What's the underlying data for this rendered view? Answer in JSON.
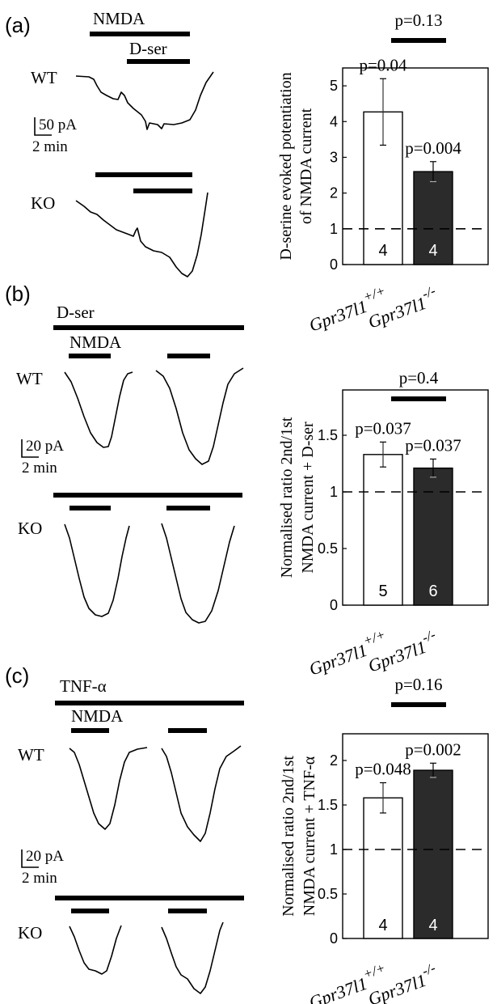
{
  "panels": [
    {
      "id": "a",
      "label": "(a)",
      "traces": {
        "wt_label": "WT",
        "ko_label": "KO",
        "outer_bar_label": "NMDA",
        "inner_bar_label": "D-ser",
        "scale_y": "50 pA",
        "scale_x": "2 min"
      }
    },
    {
      "id": "b",
      "label": "(b)",
      "traces": {
        "wt_label": "WT",
        "ko_label": "KO",
        "outer_bar_label": "D-ser",
        "inner_bar_label": "NMDA",
        "scale_y": "20 pA",
        "scale_x": "2 min"
      }
    },
    {
      "id": "c",
      "label": "(c)",
      "traces": {
        "wt_label": "WT",
        "ko_label": "KO",
        "outer_bar_label": "TNF-α",
        "inner_bar_label": "NMDA",
        "scale_y": "20 pA",
        "scale_x": "2 min"
      }
    }
  ],
  "chart_data": [
    {
      "type": "bar",
      "panel": "a",
      "ylabel_lines": [
        "D-serine evoked potentiation",
        "of NMDA current"
      ],
      "categories": [
        "Gpr37l1+/+",
        "Gpr37l1-/-"
      ],
      "category_base": [
        "Gpr37l1",
        "Gpr37l1"
      ],
      "category_sup": [
        "+/+",
        "-/-"
      ],
      "values": [
        4.27,
        2.6
      ],
      "errors": [
        0.93,
        0.28
      ],
      "n": [
        "4",
        "4"
      ],
      "bar_colors": [
        "#ffffff",
        "#2b2b2b"
      ],
      "n_colors": [
        "#000000",
        "#ffffff"
      ],
      "pvalues": [
        "p=0.04",
        "p=0.004"
      ],
      "comparison_p": "p=0.13",
      "reference_line": 1,
      "ylim": [
        0,
        5.5
      ],
      "yticks": [
        0,
        1,
        2,
        3,
        4,
        5
      ],
      "ytick_labels": [
        "0",
        "1",
        "2",
        "3",
        "4",
        "5"
      ]
    },
    {
      "type": "bar",
      "panel": "b",
      "ylabel_lines": [
        "Normalised ratio 2nd/1st",
        "NMDA current + D-ser"
      ],
      "categories": [
        "Gpr37l1+/+",
        "Gpr37l1-/-"
      ],
      "category_base": [
        "Gpr37l1",
        "Gpr37l1"
      ],
      "category_sup": [
        "+/+",
        "-/-"
      ],
      "values": [
        1.33,
        1.21
      ],
      "errors": [
        0.11,
        0.08
      ],
      "n": [
        "5",
        "6"
      ],
      "bar_colors": [
        "#ffffff",
        "#2b2b2b"
      ],
      "n_colors": [
        "#000000",
        "#ffffff"
      ],
      "pvalues": [
        "p=0.037",
        "p=0.037"
      ],
      "comparison_p": "p=0.4",
      "reference_line": 1,
      "ylim": [
        0,
        1.9
      ],
      "yticks": [
        0,
        0.5,
        1,
        1.5
      ],
      "ytick_labels": [
        "0",
        "0.5",
        "1",
        "1.5"
      ]
    },
    {
      "type": "bar",
      "panel": "c",
      "ylabel_lines": [
        "Normalised ratio 2nd/1st",
        "NMDA current + TNF-α"
      ],
      "categories": [
        "Gpr37l1+/+",
        "Gpr37l1-/-"
      ],
      "category_base": [
        "Gpr37l1",
        "Gpr37l1"
      ],
      "category_sup": [
        "+/+",
        "-/-"
      ],
      "values": [
        1.58,
        1.89
      ],
      "errors": [
        0.17,
        0.08
      ],
      "n": [
        "4",
        "4"
      ],
      "bar_colors": [
        "#ffffff",
        "#2b2b2b"
      ],
      "n_colors": [
        "#000000",
        "#ffffff"
      ],
      "pvalues": [
        "p=0.048",
        "p=0.002"
      ],
      "comparison_p": "p=0.16",
      "reference_line": 1,
      "ylim": [
        0,
        2.3
      ],
      "yticks": [
        0,
        0.5,
        1,
        1.5,
        2
      ],
      "ytick_labels": [
        "0",
        "0.5",
        "1",
        "1.5",
        "2"
      ]
    }
  ]
}
